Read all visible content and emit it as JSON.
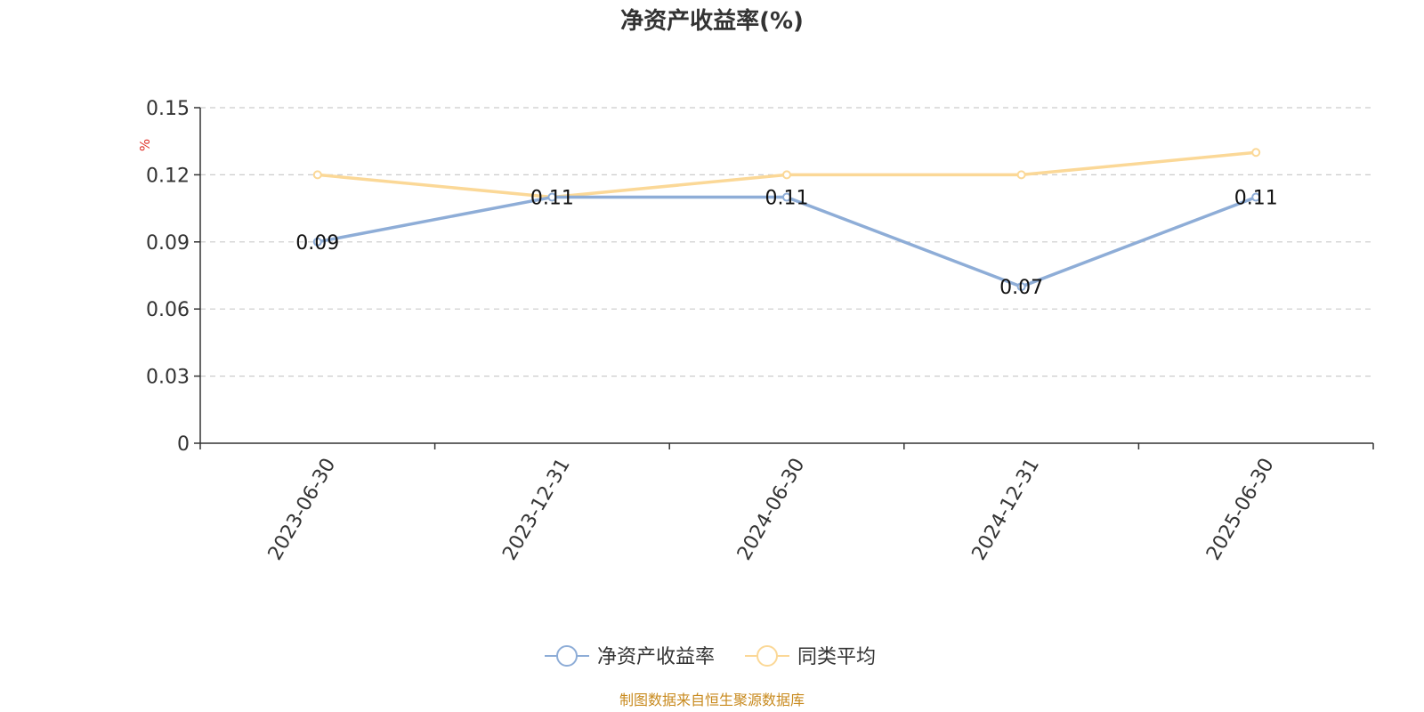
{
  "colors": {
    "series1": "#8eadd7",
    "series2": "#fbd897",
    "unit": "#e0322b",
    "source": "#c88a1e",
    "grid": "#cccccc",
    "axis": "#333333"
  },
  "chart_data": {
    "type": "line",
    "title": "净资产收益率(%)",
    "ylabel": "%",
    "xlabel": "",
    "categories": [
      "2023-06-30",
      "2023-12-31",
      "2024-06-30",
      "2024-12-31",
      "2025-06-30"
    ],
    "ylim": [
      0,
      0.15
    ],
    "yticks": [
      "0",
      "0.03",
      "0.06",
      "0.09",
      "0.12",
      "0.15"
    ],
    "grid": true,
    "legend_position": "bottom",
    "series": [
      {
        "name": "净资产收益率",
        "values": [
          0.09,
          0.11,
          0.11,
          0.07,
          0.11
        ],
        "data_labels": [
          "0.09",
          "0.11",
          "0.11",
          "0.07",
          "0.11"
        ]
      },
      {
        "name": "同类平均",
        "values": [
          0.12,
          0.11,
          0.12,
          0.12,
          0.13
        ]
      }
    ]
  },
  "source_note": "制图数据来自恒生聚源数据库"
}
